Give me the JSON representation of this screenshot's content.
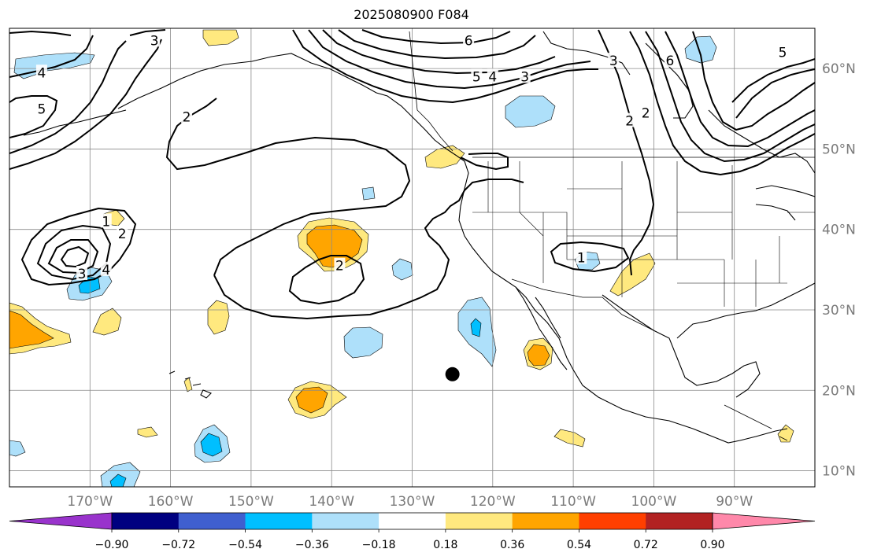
{
  "title": "2025080900 F084",
  "chart_data": {
    "type": "contour-map",
    "title": "2025080900 F084",
    "projection": "plate-carree",
    "lon_range": [
      -180,
      -80
    ],
    "lat_range": [
      8,
      65
    ],
    "lon_ticks": [
      {
        "value": -170,
        "label": "170°W"
      },
      {
        "value": -160,
        "label": "160°W"
      },
      {
        "value": -150,
        "label": "150°W"
      },
      {
        "value": -140,
        "label": "140°W"
      },
      {
        "value": -130,
        "label": "130°W"
      },
      {
        "value": -120,
        "label": "120°W"
      },
      {
        "value": -110,
        "label": "110°W"
      },
      {
        "value": -100,
        "label": "100°W"
      },
      {
        "value": -90,
        "label": "90°W"
      }
    ],
    "lat_ticks": [
      {
        "value": 10,
        "label": "10°N"
      },
      {
        "value": 20,
        "label": "20°N"
      },
      {
        "value": 30,
        "label": "30°N"
      },
      {
        "value": 40,
        "label": "40°N"
      },
      {
        "value": 50,
        "label": "50°N"
      },
      {
        "value": 60,
        "label": "60°N"
      }
    ],
    "grid": true,
    "colorbar": {
      "orientation": "horizontal",
      "extend": "both",
      "levels": [
        "−0.90",
        "−0.72",
        "−0.54",
        "−0.36",
        "−0.18",
        "0.18",
        "0.36",
        "0.54",
        "0.72",
        "0.90"
      ],
      "colors": [
        "#9933cc",
        "#000080",
        "#3f5fcf",
        "#00bfff",
        "#aee0fa",
        "#ffffff",
        "#ffe97f",
        "#ffa500",
        "#ff3f00",
        "#b22222",
        "#ff88aa"
      ]
    },
    "contour_labels": [
      {
        "text": "1",
        "lon": -168,
        "lat": 41
      },
      {
        "text": "2",
        "lon": -166,
        "lat": 39.5
      },
      {
        "text": "3",
        "lon": -171,
        "lat": 34.5
      },
      {
        "text": "4",
        "lon": -168,
        "lat": 35
      },
      {
        "text": "2",
        "lon": -139,
        "lat": 35.5
      },
      {
        "text": "1",
        "lon": -109,
        "lat": 36.5
      },
      {
        "text": "2",
        "lon": -158,
        "lat": 54
      },
      {
        "text": "4",
        "lon": -176,
        "lat": 59.5
      },
      {
        "text": "5",
        "lon": -176,
        "lat": 55
      },
      {
        "text": "3",
        "lon": -162,
        "lat": 63.5
      },
      {
        "text": "6",
        "lon": -123,
        "lat": 63.5
      },
      {
        "text": "5",
        "lon": -122,
        "lat": 59
      },
      {
        "text": "4",
        "lon": -120,
        "lat": 59
      },
      {
        "text": "3",
        "lon": -116,
        "lat": 59
      },
      {
        "text": "3",
        "lon": -105,
        "lat": 61
      },
      {
        "text": "6",
        "lon": -98,
        "lat": 61
      },
      {
        "text": "5",
        "lon": -84,
        "lat": 62
      },
      {
        "text": "2",
        "lon": -103,
        "lat": 53.5
      },
      {
        "text": "2",
        "lon": -101,
        "lat": 54.5
      }
    ],
    "marker": {
      "shape": "dot",
      "lon": -125,
      "lat": 22,
      "color": "#000000"
    }
  }
}
